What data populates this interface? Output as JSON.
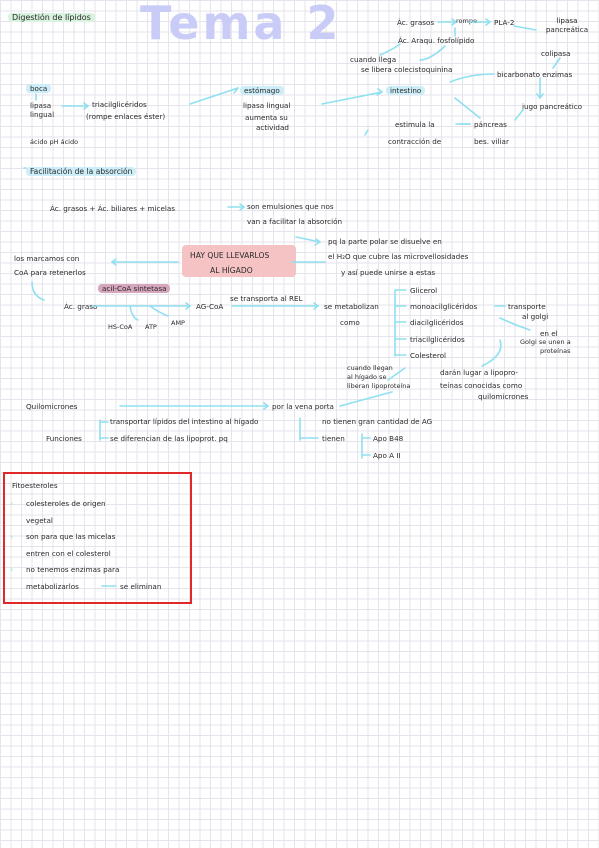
{
  "header": {
    "topic": "Digestión de lípidos",
    "title": "Tema 2"
  },
  "top_right": {
    "ac_grasos": "Ác. grasos",
    "rompe": "rompe",
    "pla2": "PLA-2",
    "ac_araquidonico": "Ác. Araqu. fosfolípido",
    "lipasa_pancreatica": "lipasa pancreática",
    "colipasa": "colipasa",
    "cuando_llega": "cuando llega",
    "se_libera": "se libera colecistoquinina",
    "intestino": "intestino",
    "bicarbonato": "bicarbonato enzimas",
    "jugo": "jugo pancreático",
    "estimula_la": "estimula la",
    "contraccion_de": "contracción de",
    "pancreas": "páncreas",
    "bes_viliar": "bes. viliar"
  },
  "mouth_stomach": {
    "boca": "boca",
    "lipasa_lingual": "lipasa lingual",
    "triacilgliceridos": "triacilglicéridos",
    "rompe_enlaces": "(rompe enlaces éster)",
    "acido_ph": "ácido pH ácido",
    "estomago": "estómago",
    "lipasa_lingual_2": "lipasa lingual",
    "aumenta_su": "aumenta su",
    "actividad": "actividad"
  },
  "absorption": {
    "heading": "Facilitación de la absorción",
    "eq_left": "Ác. grasos + Ác. biliares + micelas",
    "eq_right_1": "son emulsiones que nos",
    "eq_right_2": "van a facilitar la absorción",
    "pq_1": "pq la parte polar se disuelve en",
    "pq_2": "el H₂O que cubre las microvellosidades",
    "pq_3": "y así puede unirse a estas",
    "hay_que": "HAY QUE LLEVARLOS",
    "al_higado": "AL HÍGADO",
    "marcamos_1": "los marcamos con",
    "marcamos_2": "CoA para retenerlos",
    "acil_coa": "acil-CoA sintetasa",
    "ac_graso": "Ác. graso",
    "ag_coa": "AG-CoA",
    "hs_coa": "HS-CoA",
    "atp": "ATP",
    "amp": "AMP",
    "se_transporta": "se transporta al REL",
    "se_metabolizan": "se metabolizan",
    "como": "como",
    "glicerol": "Glicerol",
    "monoacil": "monoacilglicéridos",
    "diacil": "diacilglicéridos",
    "triacil": "triacilglicéridos",
    "colesterol": "Colesterol",
    "transporte": "transporte",
    "al_golgi": "al golgi",
    "en_el": "en el",
    "golgi_se_unen": "Golgi se unen a",
    "proteinas": "proteínas",
    "daran_lugar": "darán lugar a lipopro-",
    "teinas": "teínas conocidas como",
    "quilomicrones_small": "quilomicrones",
    "cuando_llegan": "cuando llegan",
    "al_higado_se": "al hígado se",
    "liberan": "liberan lipoproteína"
  },
  "quilomicrones": {
    "heading": "Quilomicrones",
    "por_la_vena": "por la vena porta",
    "funciones": "Funciones",
    "func_1": "transportar lípidos del intestino al hígado",
    "func_2": "se diferencian de las lipoprot. pq",
    "no_tienen": "no tienen gran cantidad de AG",
    "tienen": "tienen",
    "apo_b48": "Apo B48",
    "apo_aii": "Apo A II"
  },
  "fitoesteroles": {
    "heading": "Fitoesteroles",
    "b1_line1": "colesteroles de origen",
    "b1_line2": "vegetal",
    "b2_line1": "son para que las micelas",
    "b2_line2": "entren con el colesterol",
    "b3_line1": "no tenemos enzimas para",
    "b3_line2": "metabolizarlos",
    "b3_line2b": "se eliminan"
  },
  "colors": {
    "arrow": "#8fe0f0",
    "highlight_green": "#d8f3de",
    "highlight_blue": "#cdeef8",
    "highlight_pink": "#f5c3c3",
    "title": "#c9ccf7",
    "box_border": "#e02828"
  }
}
